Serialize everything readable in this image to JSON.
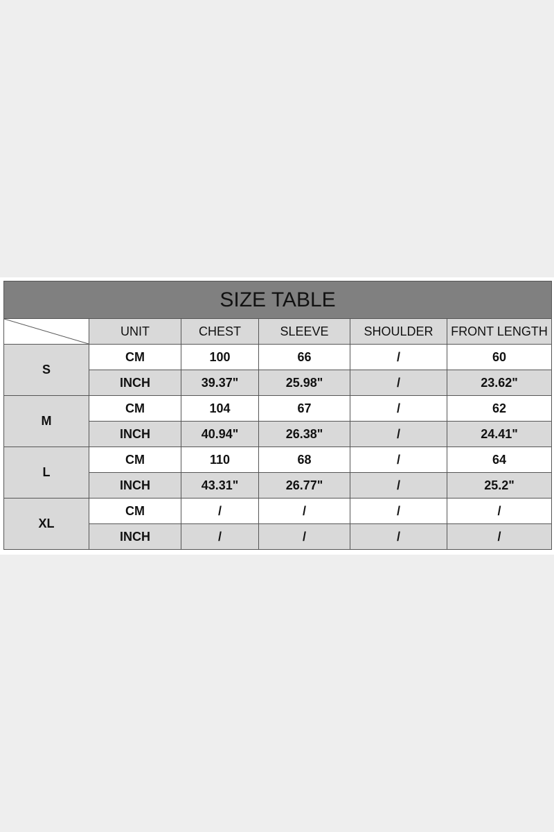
{
  "title": "SIZE TABLE",
  "headers": [
    "UNIT",
    "CHEST",
    "SLEEVE",
    "SHOULDER",
    "FRONT LENGTH"
  ],
  "sizes": [
    {
      "size": "S",
      "rows": [
        [
          "CM",
          "100",
          "66",
          "/",
          "60"
        ],
        [
          "INCH",
          "39.37\"",
          "25.98\"",
          "/",
          "23.62\""
        ]
      ]
    },
    {
      "size": "M",
      "rows": [
        [
          "CM",
          "104",
          "67",
          "/",
          "62"
        ],
        [
          "INCH",
          "40.94\"",
          "26.38\"",
          "/",
          "24.41\""
        ]
      ]
    },
    {
      "size": "L",
      "rows": [
        [
          "CM",
          "110",
          "68",
          "/",
          "64"
        ],
        [
          "INCH",
          "43.31\"",
          "26.77\"",
          "/",
          "25.2\""
        ]
      ]
    },
    {
      "size": "XL",
      "rows": [
        [
          "CM",
          "/",
          "/",
          "/",
          "/"
        ],
        [
          "INCH",
          "/",
          "/",
          "/",
          "/"
        ]
      ]
    }
  ],
  "colors": {
    "title_bg": "#808080",
    "header_bg": "#d9d9d9",
    "page_bg": "#eeeeee"
  }
}
